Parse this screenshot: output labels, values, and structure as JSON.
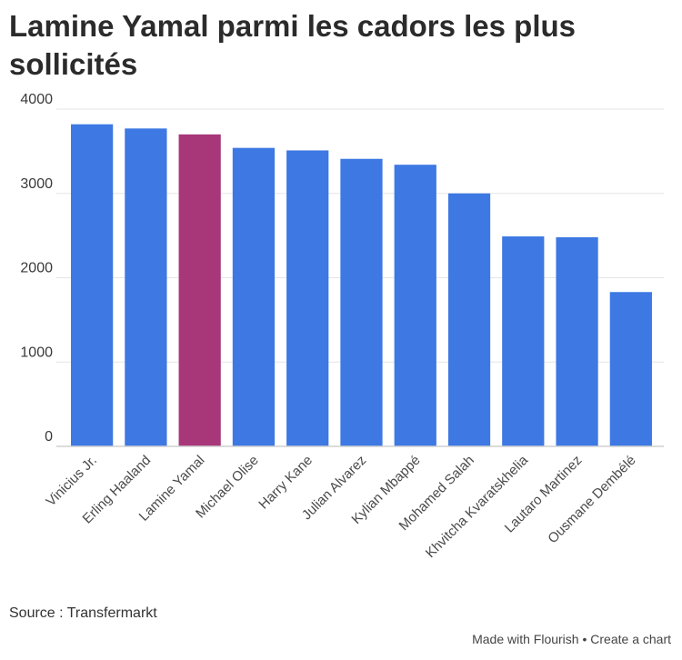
{
  "title": "Lamine Yamal parmi les cadors les plus sollicités",
  "source": "Source : Transfermarkt",
  "footer": {
    "made_with": "Made with Flourish",
    "separator": "•",
    "create": "Create a chart"
  },
  "colors": {
    "bar": "#3d78e3",
    "highlight": "#a8377a",
    "grid": "#e6e6e6",
    "axis": "#cfcfcf"
  },
  "chart_data": {
    "type": "bar",
    "categories": [
      "Vinicius Jr.",
      "Erling Haaland",
      "Lamine Yamal",
      "Michael Olise",
      "Harry Kane",
      "Julian Alvarez",
      "Kylian Mbappé",
      "Mohamed Salah",
      "Khvitcha Kvaratskhelia",
      "Lautaro Martinez",
      "Ousmane Dembélé"
    ],
    "values": [
      3820,
      3770,
      3700,
      3540,
      3510,
      3410,
      3340,
      3000,
      2490,
      2480,
      1830
    ],
    "highlight_category": "Lamine Yamal",
    "ylim": [
      0,
      4000
    ],
    "yticks": [
      "0",
      "1000",
      "2000",
      "3000",
      "4000"
    ],
    "grid": true,
    "legend": "none",
    "xlabel": "",
    "ylabel": ""
  }
}
